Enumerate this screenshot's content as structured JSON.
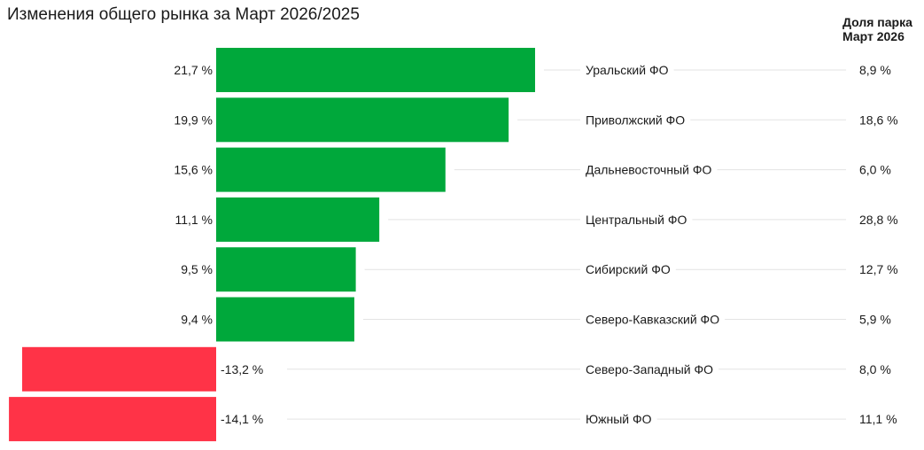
{
  "title": "Изменения общего рынка за Март 2026/2025",
  "share_header": {
    "line1": "Доля парка",
    "line2": "Март 2026"
  },
  "colors": {
    "positive": "#00a83b",
    "negative": "#ff3347",
    "guide": "#e3e3e3",
    "text": "#1a1a1a"
  },
  "chart_data": {
    "type": "bar",
    "orientation": "horizontal",
    "title": "Изменения общего рынка за Март 2026/2025",
    "categories": [
      "Уральский ФО",
      "Приволжский ФО",
      "Дальневосточный ФО",
      "Центральный ФО",
      "Сибирский ФО",
      "Северо-Кавказский ФО",
      "Северо-Западный ФО",
      "Южный ФО"
    ],
    "values": [
      21.7,
      19.9,
      15.6,
      11.1,
      9.5,
      9.4,
      -13.2,
      -14.1
    ],
    "value_labels": [
      "21,7 %",
      "19,9 %",
      "15,6 %",
      "11,1 %",
      "9,5 %",
      "9,4 %",
      "-13,2 %",
      "-14,1 %"
    ],
    "share_values": [
      8.9,
      18.6,
      6.0,
      28.8,
      12.7,
      5.9,
      8.0,
      11.1
    ],
    "share_labels": [
      "8,9 %",
      "18,6 %",
      "6,0 %",
      "28,8 %",
      "12,7 %",
      "5,9 %",
      "8,0 %",
      "11,1 %"
    ],
    "unit": "%",
    "grid": false,
    "legend": "none"
  }
}
